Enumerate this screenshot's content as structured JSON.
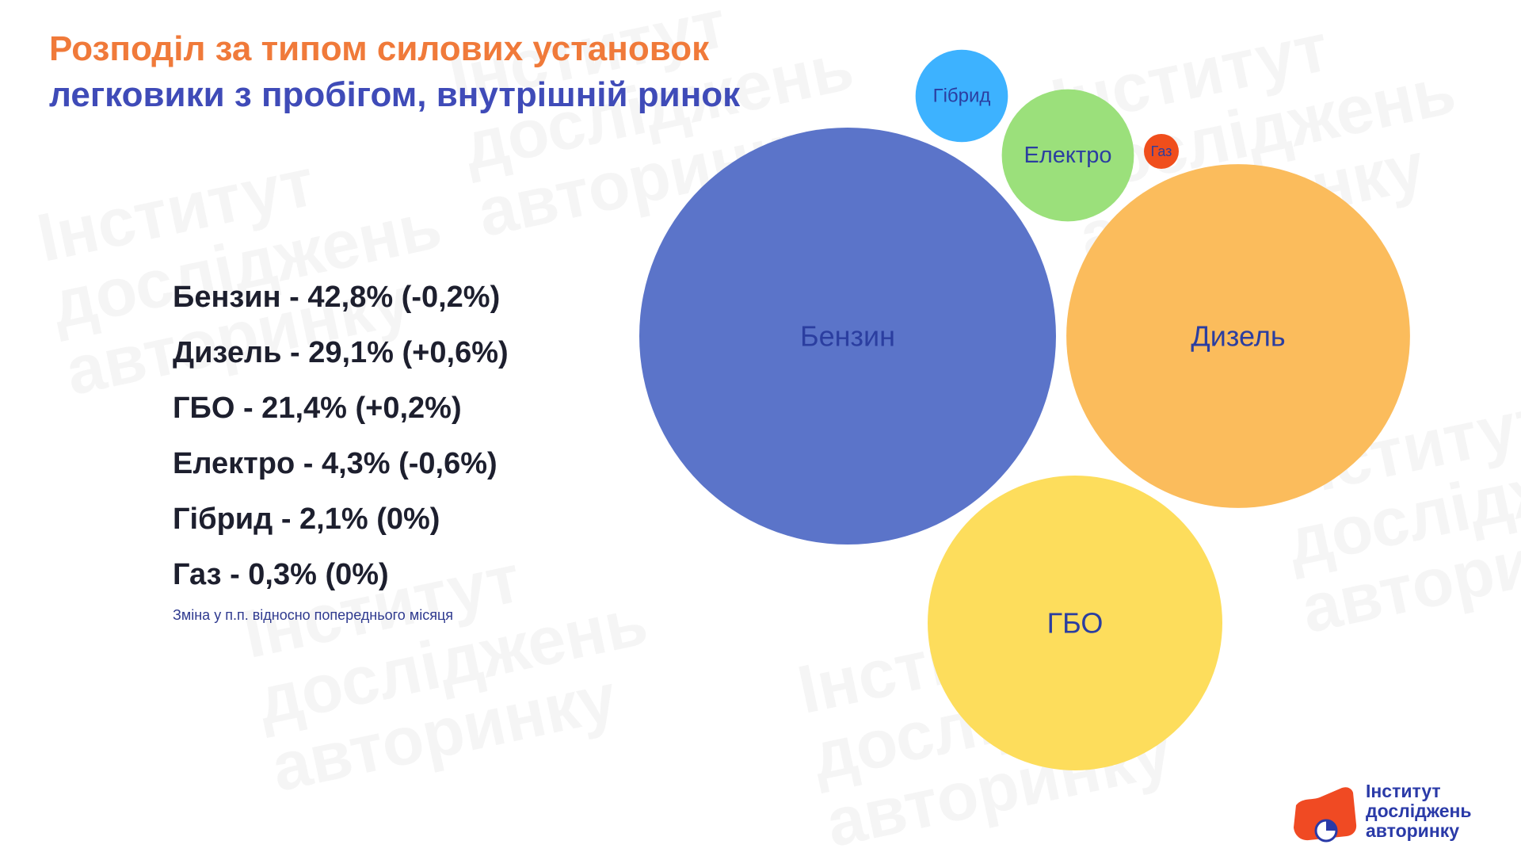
{
  "title": {
    "line1": "Розподіл за типом силових установок",
    "line2": "легковики з пробігом, внутрішній ринок"
  },
  "legend": {
    "items": [
      "Бензин - 42,8% (-0,2%)",
      "Дизель - 29,1% (+0,6%)",
      "ГБО - 21,4% (+0,2%)",
      "Електро - 4,3% (-0,6%)",
      "Гібрид - 2,1% (0%)",
      "Газ - 0,3% (0%)"
    ],
    "note": "Зміна у п.п. відносно попереднього місяця"
  },
  "chart_data": {
    "type": "bubble",
    "title": "Розподіл за типом силових установок",
    "subtitle": "легковики з пробігом, внутрішній ринок",
    "unit": "%",
    "categories": [
      "Бензин",
      "Дизель",
      "ГБО",
      "Електро",
      "Гібрид",
      "Газ"
    ],
    "values": [
      42.8,
      29.1,
      21.4,
      4.3,
      2.1,
      0.3
    ],
    "change_pp": [
      -0.2,
      0.6,
      0.2,
      -0.6,
      0,
      0
    ],
    "colors": [
      "#5b74c9",
      "#fbbc5c",
      "#fddd5c",
      "#9be07b",
      "#3db2ff",
      "#f04e1c"
    ],
    "label_colors": [
      "#2b3ea0",
      "#2b3ea0",
      "#2b3ea0",
      "#2b3ea0",
      "#2b3ea0",
      "#2b3ea0"
    ],
    "legend": "none"
  },
  "watermark": {
    "lines": [
      "Інститут",
      "досліджень",
      "авторинку"
    ]
  },
  "logo": {
    "line1": "Інститут",
    "line2": "досліджень",
    "line3": "авторинку",
    "colors": {
      "mark": "#f04a23",
      "text": "#2a3aa8"
    }
  }
}
